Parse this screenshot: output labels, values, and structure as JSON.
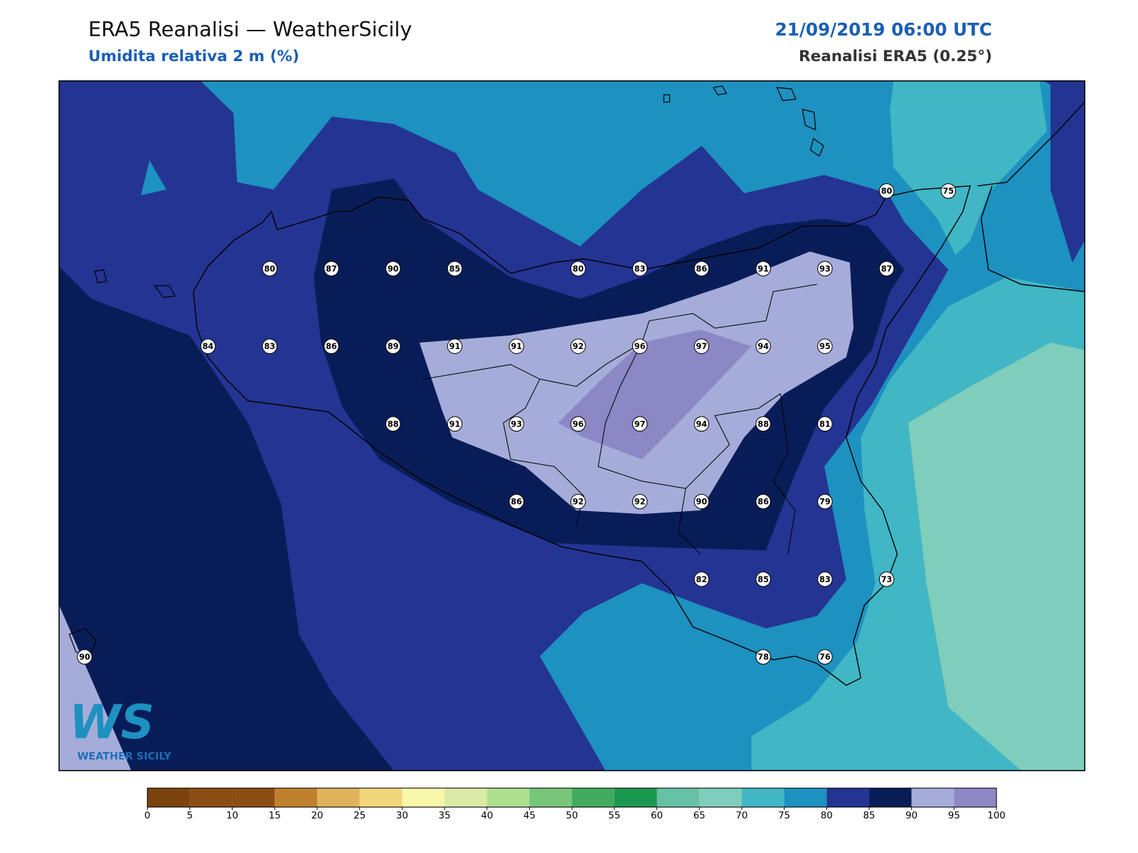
{
  "header": {
    "title": "ERA5 Reanalisi — WeatherSicily",
    "subtitle": "Umidita relativa 2 m (%)",
    "datetime": "21/09/2019 06:00 UTC",
    "source": "Reanalisi ERA5 (0.25°)"
  },
  "stations": [
    80,
    75,
    80,
    87,
    90,
    85,
    80,
    83,
    86,
    91,
    93,
    87,
    84,
    83,
    86,
    89,
    91,
    91,
    92,
    96,
    97,
    94,
    95,
    88,
    91,
    93,
    96,
    97,
    94,
    88,
    81,
    86,
    92,
    92,
    90,
    86,
    79,
    82,
    85,
    83,
    73,
    90,
    78,
    76
  ],
  "colorbar": {
    "ticks": [
      0,
      5,
      10,
      15,
      20,
      25,
      30,
      35,
      40,
      45,
      50,
      55,
      60,
      65,
      70,
      75,
      80,
      85,
      90,
      95,
      100
    ],
    "colors": [
      "#7b430d",
      "#8c4d11",
      "#8c4d11",
      "#bf812d",
      "#dfb35b",
      "#f0d57a",
      "#f7f6a9",
      "#d9eba4",
      "#ade08f",
      "#78c679",
      "#41ab5d",
      "#1a9850",
      "#66c2a4",
      "#7fcdbb",
      "#41b6c4",
      "#1d91c0",
      "#243493",
      "#081d58",
      "#a6acd9",
      "#8c88c6"
    ]
  },
  "logo": {
    "text": "WS",
    "subtext": "WEATHER SICILY"
  }
}
